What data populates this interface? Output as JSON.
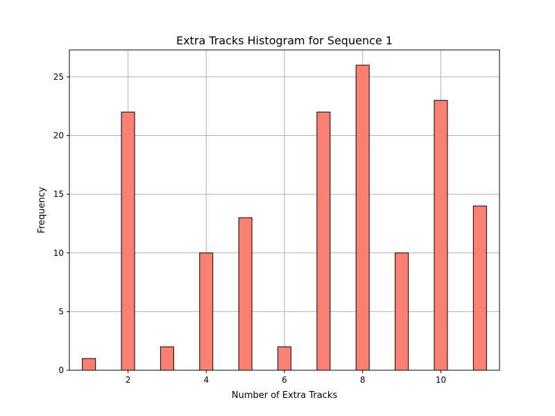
{
  "chart_data": {
    "type": "bar",
    "title": "Extra Tracks Histogram for Sequence 1",
    "xlabel": "Number of Extra Tracks",
    "ylabel": "Frequency",
    "xlim": [
      0.5,
      11.5
    ],
    "ylim": [
      0,
      27.3
    ],
    "xticks": [
      2,
      4,
      6,
      8,
      10
    ],
    "yticks": [
      0,
      5,
      10,
      15,
      20,
      25
    ],
    "grid": true,
    "bar_color": "#fa8072",
    "edge_color": "#000000",
    "bars": [
      {
        "x": 1,
        "value": 1
      },
      {
        "x": 2,
        "value": 22
      },
      {
        "x": 3,
        "value": 2
      },
      {
        "x": 4,
        "value": 10
      },
      {
        "x": 5,
        "value": 13
      },
      {
        "x": 6,
        "value": 2
      },
      {
        "x": 7,
        "value": 22
      },
      {
        "x": 8,
        "value": 26
      },
      {
        "x": 9,
        "value": 10
      },
      {
        "x": 10,
        "value": 23
      },
      {
        "x": 11,
        "value": 14
      }
    ]
  }
}
